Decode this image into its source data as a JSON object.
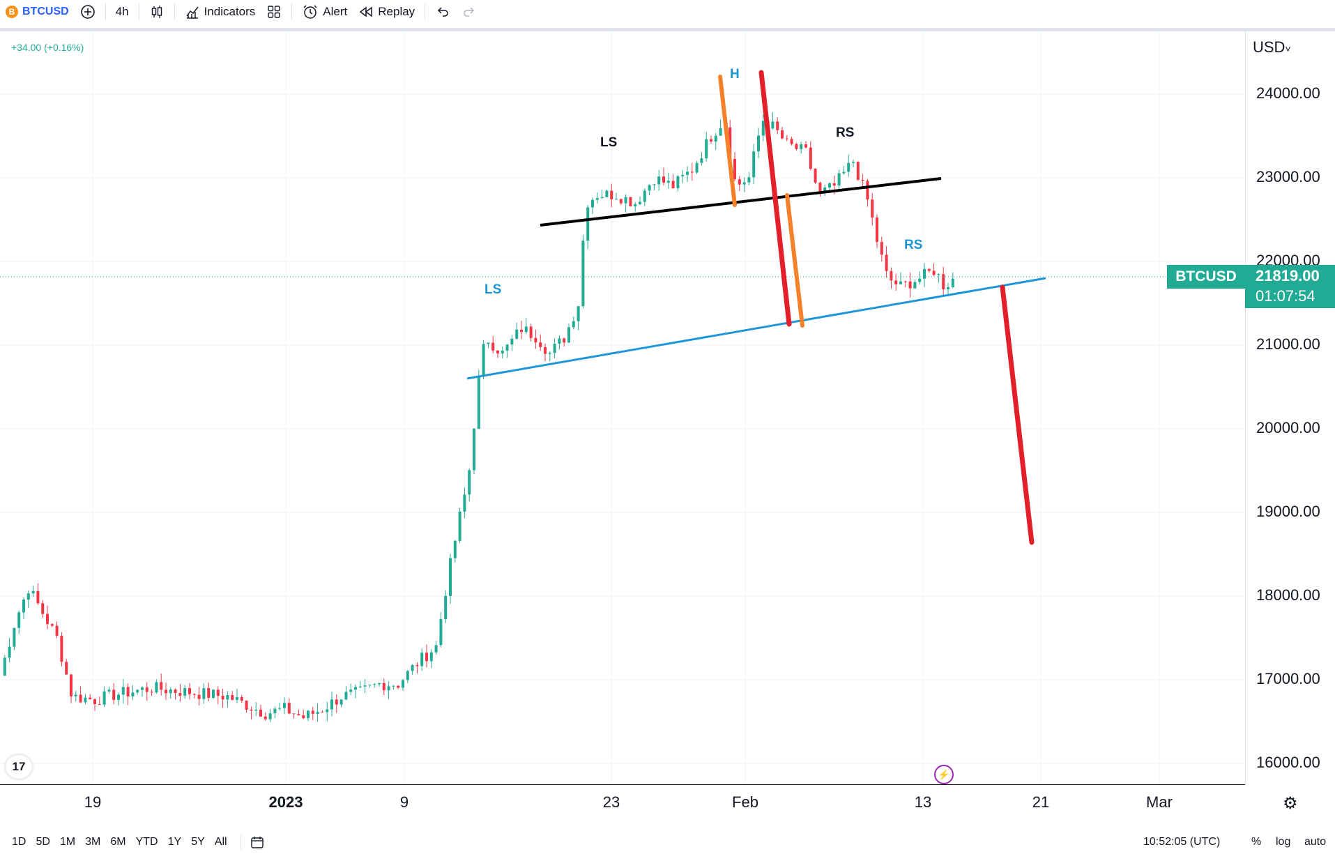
{
  "toolbar": {
    "symbol": "BTCUSD",
    "symbol_glyph": "B",
    "add_symbol_icon": "plus-circle-icon",
    "interval": "4h",
    "chart_type_icon": "candles-icon",
    "indicators_label": "Indicators",
    "templates_icon": "grid-icon",
    "alert_label": "Alert",
    "replay_label": "Replay",
    "undo_icon": "undo-icon",
    "redo_icon": "redo-icon"
  },
  "legend": {
    "change": "+34.00 (+0.16%)"
  },
  "price_scale": {
    "currency": "USD",
    "ticks": [
      "24000.00",
      "23000.00",
      "22000.00",
      "21000.00",
      "20000.00",
      "19000.00",
      "18000.00",
      "17000.00",
      "16000.00"
    ],
    "last_price": "21819.00",
    "countdown": "01:07:54",
    "symbol_tag": "BTCUSD"
  },
  "time_scale": {
    "labels": [
      "19",
      "2023",
      "9",
      "23",
      "Feb",
      "13",
      "21",
      "Mar"
    ]
  },
  "bottom_bar": {
    "ranges": [
      "1D",
      "5D",
      "1M",
      "3M",
      "6M",
      "YTD",
      "1Y",
      "5Y",
      "All"
    ],
    "calendar_icon": "calendar-icon",
    "clock": "10:52:05 (UTC)",
    "percent": "%",
    "log": "log",
    "auto": "auto"
  },
  "annotations": {
    "ls_outer": "LS",
    "ls_inner": "LS",
    "head": "H",
    "rs_inner": "RS",
    "rs_outer": "RS"
  },
  "colors": {
    "up": "#22ab94",
    "down": "#f23645",
    "neckline_outer": "#1e96d6",
    "neckline_inner": "#000000",
    "measure_red": "#e3202a",
    "measure_orange": "#f5822a"
  },
  "chart_data": {
    "type": "candlestick",
    "symbol": "BTCUSD",
    "interval": "4h",
    "x_labels": [
      "19",
      "2023",
      "9",
      "23",
      "Feb",
      "13",
      "21",
      "Mar"
    ],
    "y_range": [
      15800,
      24800
    ],
    "y_ticks": [
      16000,
      17000,
      18000,
      19000,
      20000,
      21000,
      22000,
      23000,
      24000
    ],
    "grid": true,
    "close_path": [
      [
        0,
        17050
      ],
      [
        0.8,
        17700
      ],
      [
        1.5,
        18100
      ],
      [
        2,
        17900
      ],
      [
        3,
        17500
      ],
      [
        3.8,
        16800
      ],
      [
        5,
        16760
      ],
      [
        6,
        16820
      ],
      [
        8,
        16900
      ],
      [
        10,
        16850
      ],
      [
        12,
        16800
      ],
      [
        13,
        16700
      ],
      [
        14,
        16600
      ],
      [
        15,
        16650
      ],
      [
        16,
        16550
      ],
      [
        17,
        16650
      ],
      [
        18,
        16800
      ],
      [
        19,
        16850
      ],
      [
        20,
        16950
      ],
      [
        21,
        16950
      ],
      [
        22,
        17200
      ],
      [
        23,
        17400
      ],
      [
        23.6,
        18200
      ],
      [
        24.2,
        18900
      ],
      [
        24.7,
        19400
      ],
      [
        25.2,
        20500
      ],
      [
        25.6,
        21100
      ],
      [
        26.5,
        20900
      ],
      [
        27.5,
        21200
      ],
      [
        28.3,
        21100
      ],
      [
        29,
        20900
      ],
      [
        29.8,
        21100
      ],
      [
        30.5,
        21500
      ],
      [
        30.9,
        22700
      ],
      [
        31.5,
        22800
      ],
      [
        32.5,
        22800
      ],
      [
        33.5,
        22700
      ],
      [
        34.5,
        23000
      ],
      [
        35.5,
        22900
      ],
      [
        36.5,
        23100
      ],
      [
        37.5,
        23500
      ],
      [
        38.2,
        23700
      ],
      [
        38.8,
        22900
      ],
      [
        39.5,
        23000
      ],
      [
        40.2,
        23700
      ],
      [
        40.8,
        23600
      ],
      [
        41.5,
        23400
      ],
      [
        42.5,
        23300
      ],
      [
        43.2,
        22800
      ],
      [
        44,
        22900
      ],
      [
        45,
        23200
      ],
      [
        45.8,
        22700
      ],
      [
        46.3,
        22200
      ],
      [
        46.8,
        21800
      ],
      [
        47.5,
        21700
      ],
      [
        48.5,
        21800
      ],
      [
        49.3,
        21900
      ],
      [
        49.8,
        21700
      ],
      [
        50.3,
        21800
      ]
    ]
  }
}
